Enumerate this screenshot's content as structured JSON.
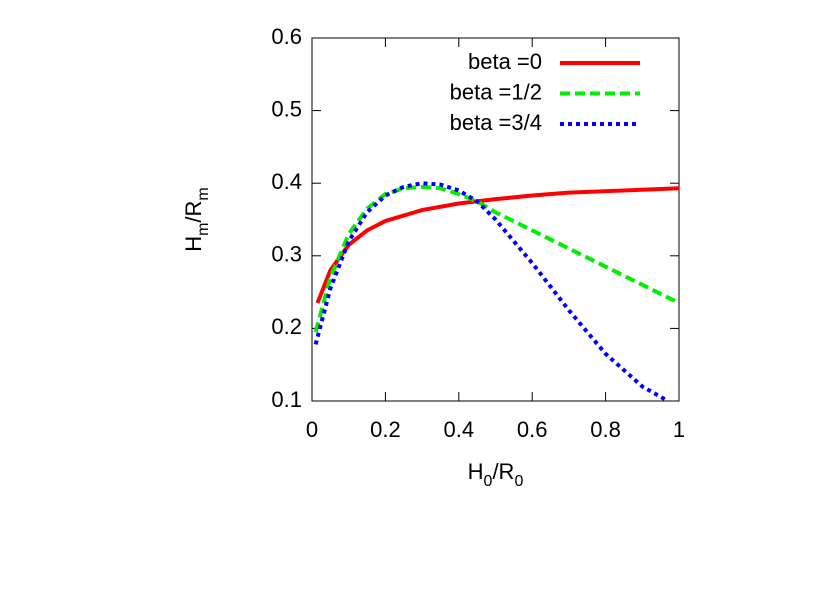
{
  "chart_data": {
    "type": "line",
    "xlabel": [
      "H",
      "0",
      "/R",
      "0"
    ],
    "ylabel": [
      "H",
      "m",
      "/R",
      "m"
    ],
    "xlim": [
      0,
      1
    ],
    "ylim": [
      0.1,
      0.6
    ],
    "xticks": [
      0,
      0.2,
      0.4,
      0.6,
      0.8,
      1
    ],
    "yticks": [
      0.1,
      0.2,
      0.3,
      0.4,
      0.5,
      0.6
    ],
    "legend": "upper right",
    "series": [
      {
        "name": "beta =0",
        "color": "#ff0000",
        "dash": "solid",
        "x": [
          0.015,
          0.05,
          0.1,
          0.15,
          0.2,
          0.3,
          0.4,
          0.5,
          0.6,
          0.7,
          0.8,
          0.9,
          1.0
        ],
        "values": [
          0.235,
          0.28,
          0.315,
          0.335,
          0.348,
          0.363,
          0.372,
          0.378,
          0.383,
          0.387,
          0.389,
          0.391,
          0.393
        ]
      },
      {
        "name": "beta =1/2",
        "color": "#00ee00",
        "dash": "dashed",
        "x": [
          0.01,
          0.05,
          0.1,
          0.15,
          0.2,
          0.25,
          0.3,
          0.35,
          0.4,
          0.45,
          0.5,
          0.6,
          0.7,
          0.8,
          0.9,
          1.0
        ],
        "values": [
          0.195,
          0.27,
          0.33,
          0.365,
          0.385,
          0.393,
          0.395,
          0.393,
          0.385,
          0.375,
          0.36,
          0.335,
          0.31,
          0.285,
          0.26,
          0.235
        ]
      },
      {
        "name": "beta =3/4",
        "color": "#0000ff",
        "dash": "dotted",
        "x": [
          0.01,
          0.05,
          0.1,
          0.15,
          0.2,
          0.25,
          0.3,
          0.35,
          0.4,
          0.45,
          0.5,
          0.6,
          0.7,
          0.8,
          0.9,
          0.97
        ],
        "values": [
          0.178,
          0.255,
          0.32,
          0.36,
          0.383,
          0.395,
          0.4,
          0.398,
          0.39,
          0.375,
          0.35,
          0.29,
          0.225,
          0.165,
          0.12,
          0.1
        ]
      }
    ]
  }
}
